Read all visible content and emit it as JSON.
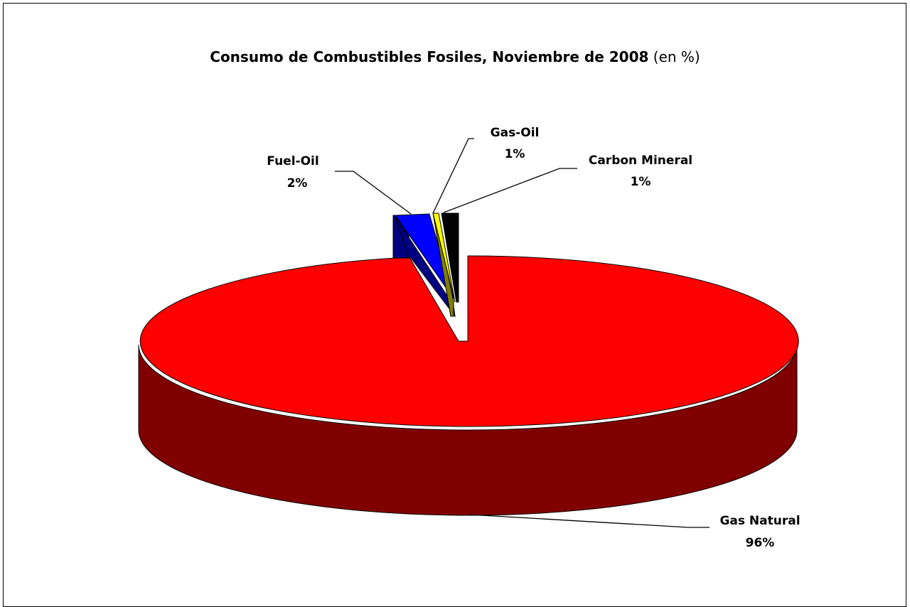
{
  "chart_data": {
    "type": "pie",
    "title": "Consumo de Combustibles Fosiles, Noviembre de 2008",
    "title_suffix": "(en %)",
    "slices": [
      {
        "name": "Gas Natural",
        "value": 96,
        "label": "96%",
        "color": "#FF0000",
        "side_color": "#800000"
      },
      {
        "name": "Fuel-Oil",
        "value": 2,
        "label": "2%",
        "color": "#0000FF",
        "side_color": "#000080"
      },
      {
        "name": "Gas-Oil",
        "value": 1,
        "label": "1%",
        "color": "#FFFF00",
        "side_color": "#808000"
      },
      {
        "name": "Carbon Mineral",
        "value": 1,
        "label": "1%",
        "color": "#000000",
        "side_color": "#000000"
      }
    ],
    "style": "3d-exploded"
  }
}
